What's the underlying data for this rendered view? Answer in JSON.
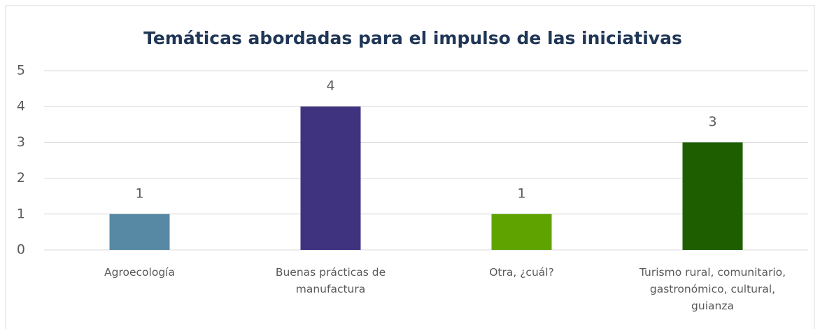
{
  "chart_data": {
    "type": "bar",
    "title": "Temáticas abordadas para el impulso de las iniciativas",
    "categories": [
      "Agroecología",
      "Buenas prácticas de manufactura",
      "Otra, ¿cuál?",
      "Turismo rural, comunitario, gastronómico, cultural, guianza"
    ],
    "values": [
      1,
      4,
      1,
      3
    ],
    "colors": [
      "#5889a4",
      "#3f3380",
      "#5fa300",
      "#1e5e00"
    ],
    "ylim": [
      0,
      5
    ],
    "yticks": [
      0,
      1,
      2,
      3,
      4,
      5
    ],
    "grid": true
  }
}
